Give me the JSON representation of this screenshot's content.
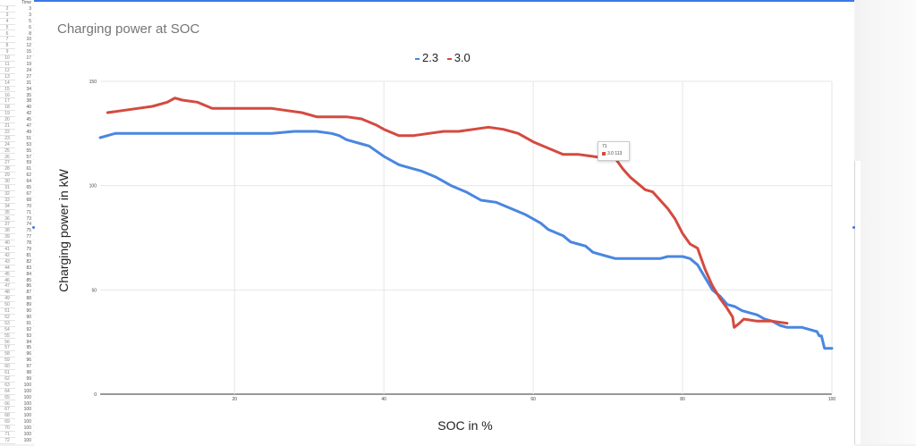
{
  "sheet": {
    "header": "Time",
    "rows": [
      {
        "index": "2",
        "value": "3"
      },
      {
        "index": "3",
        "value": "3"
      },
      {
        "index": "4",
        "value": "5"
      },
      {
        "index": "5",
        "value": "6"
      },
      {
        "index": "6",
        "value": "8"
      },
      {
        "index": "7",
        "value": "10"
      },
      {
        "index": "8",
        "value": "12"
      },
      {
        "index": "9",
        "value": "15"
      },
      {
        "index": "10",
        "value": "17"
      },
      {
        "index": "11",
        "value": "19"
      },
      {
        "index": "12",
        "value": "24"
      },
      {
        "index": "13",
        "value": "27"
      },
      {
        "index": "14",
        "value": "31"
      },
      {
        "index": "15",
        "value": "34"
      },
      {
        "index": "16",
        "value": "35"
      },
      {
        "index": "17",
        "value": "38"
      },
      {
        "index": "18",
        "value": "40"
      },
      {
        "index": "19",
        "value": "42"
      },
      {
        "index": "20",
        "value": "45"
      },
      {
        "index": "21",
        "value": "47"
      },
      {
        "index": "22",
        "value": "49"
      },
      {
        "index": "23",
        "value": "51"
      },
      {
        "index": "24",
        "value": "53"
      },
      {
        "index": "25",
        "value": "55"
      },
      {
        "index": "26",
        "value": "57"
      },
      {
        "index": "27",
        "value": "59"
      },
      {
        "index": "28",
        "value": "61"
      },
      {
        "index": "29",
        "value": "62"
      },
      {
        "index": "30",
        "value": "64"
      },
      {
        "index": "31",
        "value": "65"
      },
      {
        "index": "32",
        "value": "67"
      },
      {
        "index": "33",
        "value": "68"
      },
      {
        "index": "34",
        "value": "70"
      },
      {
        "index": "35",
        "value": "71"
      },
      {
        "index": "36",
        "value": "73"
      },
      {
        "index": "37",
        "value": "74"
      },
      {
        "index": "38",
        "value": "75"
      },
      {
        "index": "39",
        "value": "77"
      },
      {
        "index": "40",
        "value": "78"
      },
      {
        "index": "41",
        "value": "79"
      },
      {
        "index": "42",
        "value": "81"
      },
      {
        "index": "43",
        "value": "82"
      },
      {
        "index": "44",
        "value": "83"
      },
      {
        "index": "45",
        "value": "84"
      },
      {
        "index": "46",
        "value": "85"
      },
      {
        "index": "47",
        "value": "86"
      },
      {
        "index": "48",
        "value": "87"
      },
      {
        "index": "49",
        "value": "88"
      },
      {
        "index": "50",
        "value": "89"
      },
      {
        "index": "51",
        "value": "90"
      },
      {
        "index": "52",
        "value": "90"
      },
      {
        "index": "53",
        "value": "91"
      },
      {
        "index": "54",
        "value": "92"
      },
      {
        "index": "55",
        "value": "93"
      },
      {
        "index": "56",
        "value": "94"
      },
      {
        "index": "57",
        "value": "95"
      },
      {
        "index": "58",
        "value": "96"
      },
      {
        "index": "59",
        "value": "96"
      },
      {
        "index": "60",
        "value": "97"
      },
      {
        "index": "61",
        "value": "98"
      },
      {
        "index": "62",
        "value": "99"
      },
      {
        "index": "63",
        "value": "100"
      },
      {
        "index": "64",
        "value": "100"
      },
      {
        "index": "65",
        "value": "100"
      },
      {
        "index": "66",
        "value": "100"
      },
      {
        "index": "67",
        "value": "100"
      },
      {
        "index": "68",
        "value": "100"
      },
      {
        "index": "69",
        "value": "100"
      },
      {
        "index": "70",
        "value": "100"
      },
      {
        "index": "71",
        "value": "100"
      },
      {
        "index": "72",
        "value": "100"
      }
    ]
  },
  "tooltip": {
    "x_label": "71",
    "series_label": "3.0",
    "value_label": "113",
    "swatch_color": "#d44a40"
  },
  "chart_data": {
    "type": "line",
    "title": "Charging power at SOC",
    "xlabel": "SOC in %",
    "ylabel": "Charging power in kW",
    "xlim": [
      2,
      100
    ],
    "ylim": [
      0,
      150
    ],
    "x_ticks": [
      "20",
      "40",
      "60",
      "80",
      "100"
    ],
    "y_ticks": [
      "0",
      "50",
      "100",
      "150"
    ],
    "grid": true,
    "legend_position": "top-center",
    "series": [
      {
        "name": "2.3",
        "color": "#4a86e0",
        "points": [
          [
            2,
            123
          ],
          [
            4,
            125
          ],
          [
            6,
            125
          ],
          [
            10,
            125
          ],
          [
            15,
            125
          ],
          [
            20,
            125
          ],
          [
            25,
            125
          ],
          [
            28,
            126
          ],
          [
            31,
            126
          ],
          [
            33,
            125
          ],
          [
            34,
            124
          ],
          [
            35,
            122
          ],
          [
            37,
            120
          ],
          [
            38,
            119
          ],
          [
            40,
            114
          ],
          [
            42,
            110
          ],
          [
            43,
            109
          ],
          [
            45,
            107
          ],
          [
            47,
            104
          ],
          [
            49,
            100
          ],
          [
            51,
            97
          ],
          [
            53,
            93
          ],
          [
            55,
            92
          ],
          [
            57,
            89
          ],
          [
            59,
            86
          ],
          [
            61,
            82
          ],
          [
            62,
            79
          ],
          [
            64,
            76
          ],
          [
            65,
            73
          ],
          [
            66,
            72
          ],
          [
            67,
            71
          ],
          [
            68,
            68
          ],
          [
            70,
            66
          ],
          [
            71,
            65
          ],
          [
            73,
            65
          ],
          [
            75,
            65
          ],
          [
            77,
            65
          ],
          [
            78,
            66
          ],
          [
            80,
            66
          ],
          [
            81,
            65
          ],
          [
            82,
            62
          ],
          [
            83,
            56
          ],
          [
            84,
            50
          ],
          [
            85,
            47
          ],
          [
            86,
            43
          ],
          [
            87,
            42
          ],
          [
            88,
            40
          ],
          [
            90,
            38
          ],
          [
            91,
            36
          ],
          [
            92,
            35
          ],
          [
            93,
            33
          ],
          [
            94,
            32
          ],
          [
            96,
            32
          ],
          [
            97,
            31
          ],
          [
            98,
            30
          ],
          [
            98.3,
            28
          ],
          [
            98.6,
            28
          ],
          [
            99,
            22
          ],
          [
            100,
            22
          ]
        ]
      },
      {
        "name": "3.0",
        "color": "#d44a40",
        "points": [
          [
            3,
            135
          ],
          [
            5,
            136
          ],
          [
            7,
            137
          ],
          [
            9,
            138
          ],
          [
            11,
            140
          ],
          [
            12,
            142
          ],
          [
            13,
            141
          ],
          [
            15,
            140
          ],
          [
            17,
            137
          ],
          [
            19,
            137
          ],
          [
            21,
            137
          ],
          [
            23,
            137
          ],
          [
            25,
            137
          ],
          [
            27,
            136
          ],
          [
            29,
            135
          ],
          [
            31,
            133
          ],
          [
            33,
            133
          ],
          [
            35,
            133
          ],
          [
            37,
            132
          ],
          [
            39,
            129
          ],
          [
            40,
            127
          ],
          [
            42,
            124
          ],
          [
            44,
            124
          ],
          [
            46,
            125
          ],
          [
            48,
            126
          ],
          [
            50,
            126
          ],
          [
            52,
            127
          ],
          [
            54,
            128
          ],
          [
            56,
            127
          ],
          [
            58,
            125
          ],
          [
            60,
            121
          ],
          [
            62,
            118
          ],
          [
            64,
            115
          ],
          [
            66,
            115
          ],
          [
            68,
            114
          ],
          [
            70,
            113
          ],
          [
            71,
            113
          ],
          [
            72,
            108
          ],
          [
            73,
            104
          ],
          [
            74,
            101
          ],
          [
            75,
            98
          ],
          [
            76,
            97
          ],
          [
            77,
            93
          ],
          [
            78,
            89
          ],
          [
            79,
            84
          ],
          [
            80,
            77
          ],
          [
            81,
            72
          ],
          [
            82,
            70
          ],
          [
            83,
            60
          ],
          [
            84,
            52
          ],
          [
            85,
            46
          ],
          [
            86,
            41
          ],
          [
            86.7,
            37
          ],
          [
            86.9,
            32
          ],
          [
            87.6,
            34
          ],
          [
            88.2,
            36
          ],
          [
            90,
            35
          ],
          [
            92,
            35
          ],
          [
            94,
            34
          ]
        ]
      }
    ]
  }
}
